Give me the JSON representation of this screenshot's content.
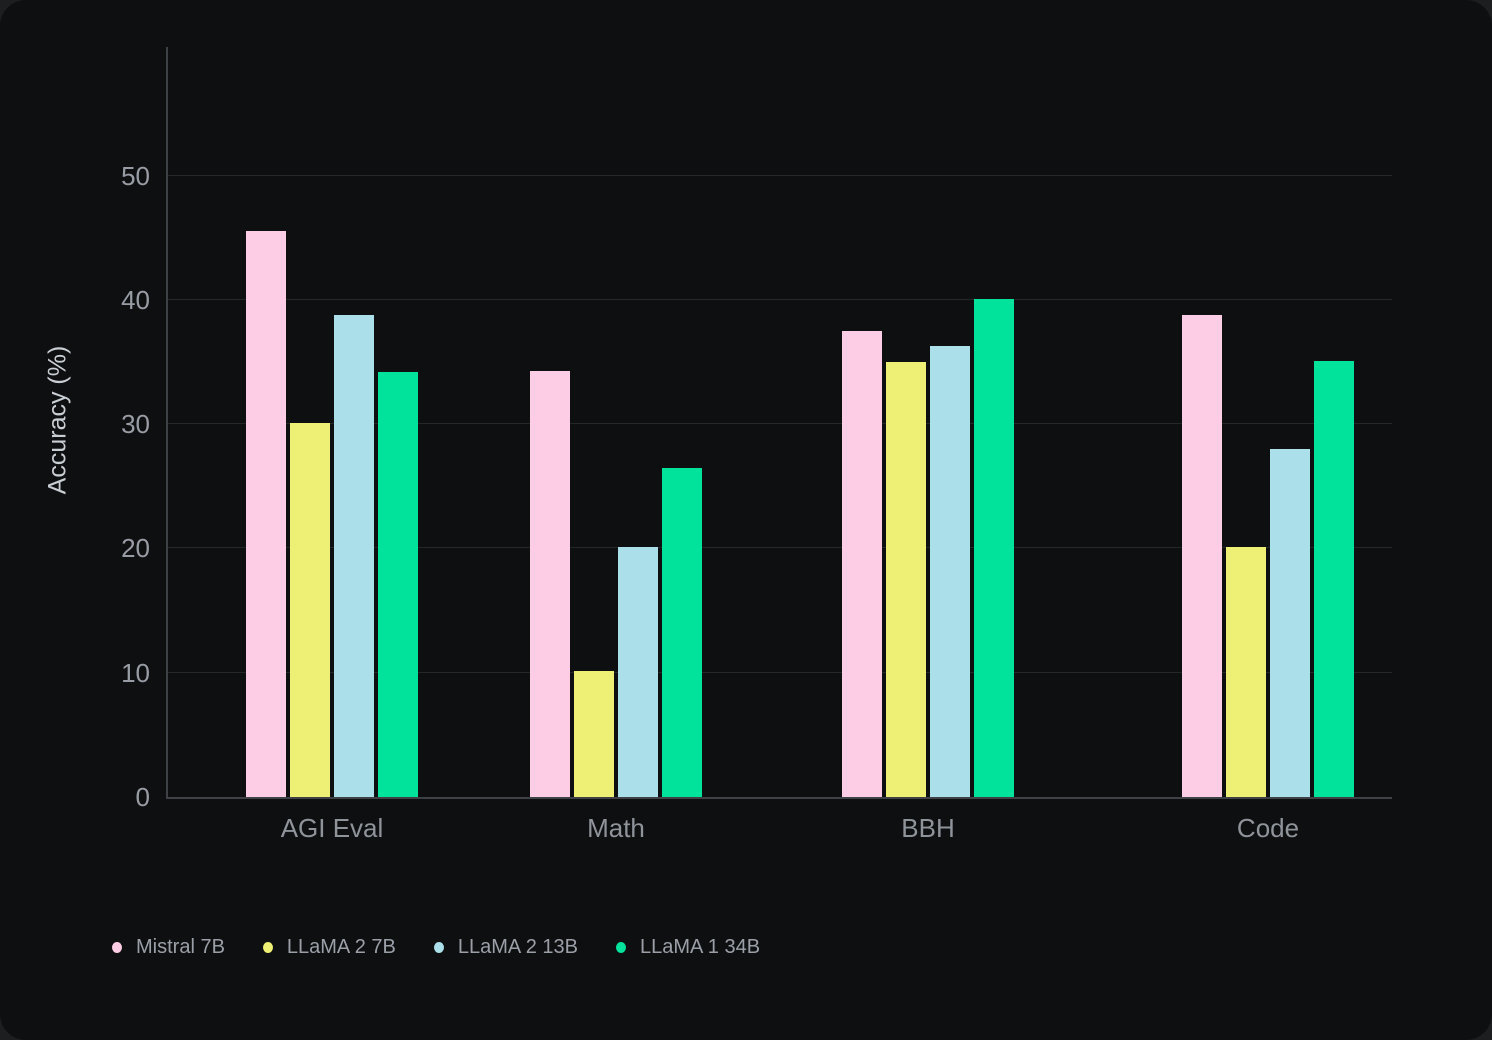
{
  "chart_data": {
    "type": "bar",
    "title": "",
    "xlabel": "",
    "ylabel": "Accuracy (%)",
    "categories": [
      "AGI Eval",
      "Math",
      "BBH",
      "Code"
    ],
    "series": [
      {
        "name": "Mistral 7B",
        "color": "#fccde4",
        "values": [
          45.5,
          34.3,
          37.5,
          38.8
        ]
      },
      {
        "name": "LLaMA 2 7B",
        "color": "#edf074",
        "values": [
          30.1,
          10.1,
          35.0,
          20.1
        ]
      },
      {
        "name": "LLaMA 2 13B",
        "color": "#abdfe9",
        "values": [
          38.8,
          20.1,
          36.3,
          28.0
        ]
      },
      {
        "name": "LLaMA 1 34B",
        "color": "#01e29b",
        "values": [
          34.2,
          26.5,
          40.1,
          35.1
        ]
      }
    ],
    "yticks": [
      0,
      10,
      20,
      30,
      40,
      50
    ],
    "ylim": [
      0,
      60.5
    ],
    "grid": true,
    "legend_position": "bottom-left",
    "background_color": "#0e0f10"
  }
}
